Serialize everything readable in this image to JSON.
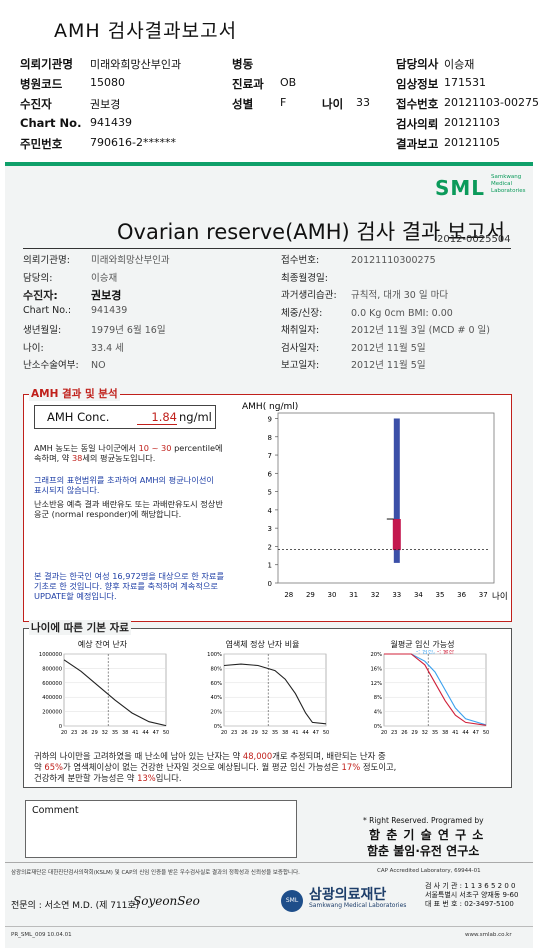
{
  "header": {
    "title": "AMH 검사결과보고서",
    "rows": [
      [
        {
          "label": "의뢰기관명",
          "value": "미래와희망산부인과"
        },
        {
          "label": "병동",
          "value": ""
        },
        {
          "label": "담당의사",
          "value": "이승재"
        }
      ],
      [
        {
          "label": "병원코드",
          "value": "15080"
        },
        {
          "label": "진료과",
          "value": "OB"
        },
        {
          "label": "임상정보",
          "value": "171531"
        }
      ],
      [
        {
          "label": "수진자",
          "value": "권보경"
        },
        {
          "label": "성별",
          "value": "F"
        },
        {
          "label": "접수번호",
          "value": "20121103-00275"
        }
      ],
      [
        {
          "label": "Chart No.",
          "value": "941439"
        },
        {
          "label": "",
          "value": ""
        },
        {
          "label": "검사의뢰",
          "value": "20121103"
        }
      ],
      [
        {
          "label": "주민번호",
          "value": "790616-2******"
        },
        {
          "label": "",
          "value": ""
        },
        {
          "label": "결과보고",
          "value": "20121105"
        }
      ]
    ],
    "age_label": "나이",
    "age_value": "33"
  },
  "logo": {
    "text": "SML",
    "sub1": "Samkwang",
    "sub2": "Medical",
    "sub3": "Laboratories"
  },
  "report": {
    "title": "Ovarian reserve(AMH) 검사 결과 보고서",
    "number": "2012-0025504",
    "left": [
      {
        "label": "의뢰기관명:",
        "value": "미래와희망산부인과"
      },
      {
        "label": "담당의:",
        "value": "이승재"
      },
      {
        "label": "수진자:",
        "value": "권보경"
      },
      {
        "label": "Chart No.:",
        "value": "941439"
      },
      {
        "label": "생년월일:",
        "value": "1979년 6월 16일"
      },
      {
        "label": "나이:",
        "value": "33.4 세"
      },
      {
        "label": "난소수술여부:",
        "value": "NO"
      }
    ],
    "right": [
      {
        "label": "접수번호:",
        "value": "20121110300275"
      },
      {
        "label": "최종월경일:",
        "value": ""
      },
      {
        "label": "과거생리습관:",
        "value": "규칙적, 대개   30 일 마다"
      },
      {
        "label": "체중/신장:",
        "value": "0.0 Kg        0cm    BMI:    0.00"
      },
      {
        "label": "채취일자:",
        "value": "2012년 11월 3일   (MCD # 0 일)"
      },
      {
        "label": "검사일자:",
        "value": "2012년 11월 5일"
      },
      {
        "label": "보고일자:",
        "value": "2012년 11월 5일"
      }
    ]
  },
  "amh": {
    "section_title": "AMH 결과 및 분석",
    "conc_label": "AMH Conc.",
    "conc_value": "1.84",
    "conc_unit": "ng/ml",
    "note1_a": "AMH 농도는 동일 나이군에서",
    "note1_b": "10 ~ 30",
    "note1_c": "percentile에 속하며, 약",
    "note1_d": "38",
    "note1_e": "세의 평균농도입니다.",
    "note2": "그래프의 표현범위를 초과하여 AMH의 평균나이선이 표시되지 않습니다.",
    "note3": "난소반응 예측 결과 배란유도 또는 과배란유도시 정상반응군 (normal responder)에 해당합니다.",
    "note4": "본 결과는 한국인 여성 16,972명을 대상으로 한 자료를 기초로 한 것입니다. 향후 자료를 축적하여 계속적으로 UPDATE할 예정입니다."
  },
  "chart_data": [
    {
      "type": "bar",
      "title": "AMH( ng/ml)",
      "xlabel": "나이",
      "x_ticks": [
        28,
        29,
        30,
        31,
        32,
        33,
        34,
        35,
        36,
        37
      ],
      "y_ticks": [
        0,
        1,
        2,
        3,
        4,
        5,
        6,
        7,
        8,
        9
      ],
      "ylim": [
        0,
        9.3
      ],
      "range_bar": {
        "age": 33,
        "low": 1.1,
        "high": 9.0
      },
      "percentile_bar": {
        "age": 33,
        "low": 1.8,
        "high": 3.5
      },
      "patient_value": 1.84
    },
    {
      "type": "line",
      "title": "예상 잔여 난자",
      "x_ticks": [
        "20",
        "23",
        "26",
        "29",
        "32",
        "35",
        "38",
        "41",
        "44",
        "47",
        "50"
      ],
      "y_ticks": [
        "0",
        "200000",
        "400000",
        "600000",
        "800000",
        "1000000"
      ],
      "series": [
        {
          "values": [
            [
              20,
              920000
            ],
            [
              25,
              760000
            ],
            [
              30,
              560000
            ],
            [
              35,
              360000
            ],
            [
              40,
              180000
            ],
            [
              45,
              60000
            ],
            [
              50,
              5000
            ]
          ]
        }
      ]
    },
    {
      "type": "line",
      "title": "염색체 정상 난자 비율",
      "x_ticks": [
        "20",
        "23",
        "26",
        "29",
        "32",
        "35",
        "38",
        "41",
        "44",
        "47",
        "50"
      ],
      "y_ticks": [
        "0%",
        "20%",
        "40%",
        "60%",
        "80%",
        "100%"
      ],
      "series": [
        {
          "values": [
            [
              20,
              84
            ],
            [
              25,
              86
            ],
            [
              30,
              84
            ],
            [
              35,
              77
            ],
            [
              38,
              65
            ],
            [
              41,
              45
            ],
            [
              44,
              18
            ],
            [
              46,
              5
            ],
            [
              50,
              3
            ]
          ]
        }
      ]
    },
    {
      "type": "line",
      "title": "월평균 임신 가능성",
      "legend": [
        "임신",
        "출산"
      ],
      "x_ticks": [
        "20",
        "23",
        "26",
        "29",
        "32",
        "35",
        "38",
        "41",
        "44",
        "47",
        "50"
      ],
      "y_ticks": [
        "0%",
        "4%",
        "8%",
        "12%",
        "16%",
        "20%"
      ],
      "series": [
        {
          "name": "임신",
          "color": "#3aa0ee",
          "values": [
            [
              20,
              20
            ],
            [
              28,
              20
            ],
            [
              32,
              18
            ],
            [
              35,
              15
            ],
            [
              38,
              10
            ],
            [
              41,
              5
            ],
            [
              44,
              2
            ],
            [
              50,
              0.3
            ]
          ]
        },
        {
          "name": "출산",
          "color": "#d0203a",
          "values": [
            [
              20,
              20
            ],
            [
              28,
              20
            ],
            [
              32,
              17
            ],
            [
              35,
              12
            ],
            [
              38,
              7
            ],
            [
              41,
              3
            ],
            [
              44,
              1
            ],
            [
              50,
              0.2
            ]
          ]
        }
      ]
    }
  ],
  "basic": {
    "section_title": "나이에 따른 기본 자료",
    "summary_1a": "귀하의 나이만을 고려하였을 때 난소에 남아 있는 난자는 약",
    "summary_1b": "48,000",
    "summary_1c": "개로 추정되며, 배란되는 난자 중",
    "summary_2a": "약",
    "summary_2b": "65%",
    "summary_2c": "가 염색체이상이 없는 건강한 난자일 것으로 예상됩니다. 월 평균 임신 가능성은",
    "summary_2d": "17%",
    "summary_2e": "정도이고,",
    "summary_3a": "건강하게 분만할 가능성은 약",
    "summary_3b": "13%",
    "summary_3c": "입니다."
  },
  "comment": {
    "label": "Comment"
  },
  "footer": {
    "rights": "* Right Reserved. Programed by",
    "lab1": "함 춘 기 술 연 구 소",
    "lab2": "함춘 불임·유전 연구소",
    "cap": "CAP  Accredited  Laboratory,  69944-01",
    "cert": "삼광의료재단은 대한진단검사의학회(KSLM) 및 CAP의 신임 인증을 받은 우수검사실로 결과의 정확성과 신뢰성을 보증합니다.",
    "signer": "전문의 : 서소연 M.D. (제 711호)",
    "signature": "SoyeonSeo",
    "foundation": "삼광의료재단",
    "foundation_en": "Samkwang Medical Laboratories",
    "contact1": "검 사 기 관 : 1 1 3 6 5 2 0 0",
    "contact2": "서울특별시 서초구 양재동 9-60",
    "contact3": "대 표 번 호 : 02-3497-5100",
    "form": "PR_SML_009  10.04.01",
    "web": "www.smlab.co.kr"
  }
}
